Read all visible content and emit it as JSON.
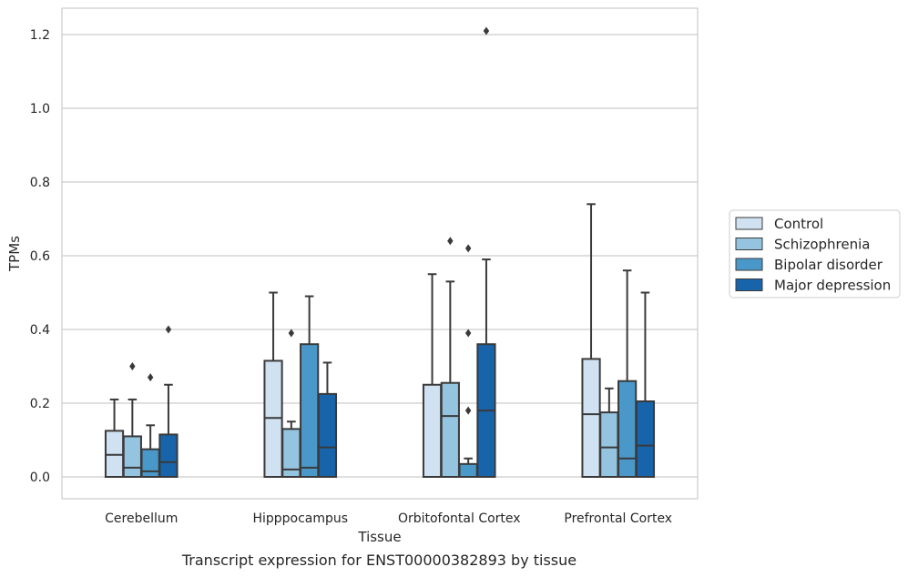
{
  "caption": "Transcript expression for ENST00000382893 by tissue",
  "chart_data": {
    "type": "box",
    "xlabel": "Tissue",
    "ylabel": "TPMs",
    "ylim": [
      -0.06,
      1.27
    ],
    "yticks": [
      0.0,
      0.2,
      0.4,
      0.6,
      0.8,
      1.0,
      1.2
    ],
    "ytick_labels": [
      "0.0",
      "0.2",
      "0.4",
      "0.6",
      "0.8",
      "1.0",
      "1.2"
    ],
    "grid": true,
    "legend_position": "outside-right",
    "categories": [
      "Cerebellum",
      "Hipppocampus",
      "Orbitofontal Cortex",
      "Prefrontal Cortex"
    ],
    "series": [
      {
        "name": "Control",
        "color": "#d0e1f2",
        "boxes": [
          {
            "whislo": 0.0,
            "q1": 0.0,
            "med": 0.06,
            "q3": 0.125,
            "whishi": 0.21,
            "fliers": []
          },
          {
            "whislo": 0.0,
            "q1": 0.0,
            "med": 0.16,
            "q3": 0.315,
            "whishi": 0.5,
            "fliers": []
          },
          {
            "whislo": 0.0,
            "q1": 0.0,
            "med": 0.0,
            "q3": 0.25,
            "whishi": 0.55,
            "fliers": []
          },
          {
            "whislo": 0.0,
            "q1": 0.0,
            "med": 0.17,
            "q3": 0.32,
            "whishi": 0.74,
            "fliers": []
          }
        ]
      },
      {
        "name": "Schizophrenia",
        "color": "#94c4df",
        "boxes": [
          {
            "whislo": 0.0,
            "q1": 0.0,
            "med": 0.025,
            "q3": 0.11,
            "whishi": 0.21,
            "fliers": [
              0.3
            ]
          },
          {
            "whislo": 0.0,
            "q1": 0.0,
            "med": 0.02,
            "q3": 0.13,
            "whishi": 0.15,
            "fliers": [
              0.39
            ]
          },
          {
            "whislo": 0.0,
            "q1": 0.0,
            "med": 0.165,
            "q3": 0.255,
            "whishi": 0.53,
            "fliers": [
              0.64
            ]
          },
          {
            "whislo": 0.0,
            "q1": 0.0,
            "med": 0.08,
            "q3": 0.175,
            "whishi": 0.24,
            "fliers": []
          }
        ]
      },
      {
        "name": "Bipolar disorder",
        "color": "#4a98c9",
        "boxes": [
          {
            "whislo": 0.0,
            "q1": 0.0,
            "med": 0.015,
            "q3": 0.075,
            "whishi": 0.14,
            "fliers": [
              0.27
            ]
          },
          {
            "whislo": 0.0,
            "q1": 0.0,
            "med": 0.025,
            "q3": 0.36,
            "whishi": 0.49,
            "fliers": []
          },
          {
            "whislo": 0.0,
            "q1": 0.0,
            "med": 0.0,
            "q3": 0.035,
            "whishi": 0.05,
            "fliers": [
              0.18,
              0.39,
              0.62
            ]
          },
          {
            "whislo": 0.0,
            "q1": 0.0,
            "med": 0.05,
            "q3": 0.26,
            "whishi": 0.56,
            "fliers": []
          }
        ]
      },
      {
        "name": "Major depression",
        "color": "#1764ab",
        "boxes": [
          {
            "whislo": 0.0,
            "q1": 0.0,
            "med": 0.04,
            "q3": 0.115,
            "whishi": 0.25,
            "fliers": [
              0.4
            ]
          },
          {
            "whislo": 0.0,
            "q1": 0.0,
            "med": 0.08,
            "q3": 0.225,
            "whishi": 0.31,
            "fliers": []
          },
          {
            "whislo": 0.0,
            "q1": 0.0,
            "med": 0.18,
            "q3": 0.36,
            "whishi": 0.59,
            "fliers": [
              1.21
            ]
          },
          {
            "whislo": 0.0,
            "q1": 0.0,
            "med": 0.085,
            "q3": 0.205,
            "whishi": 0.5,
            "fliers": []
          }
        ]
      }
    ]
  }
}
